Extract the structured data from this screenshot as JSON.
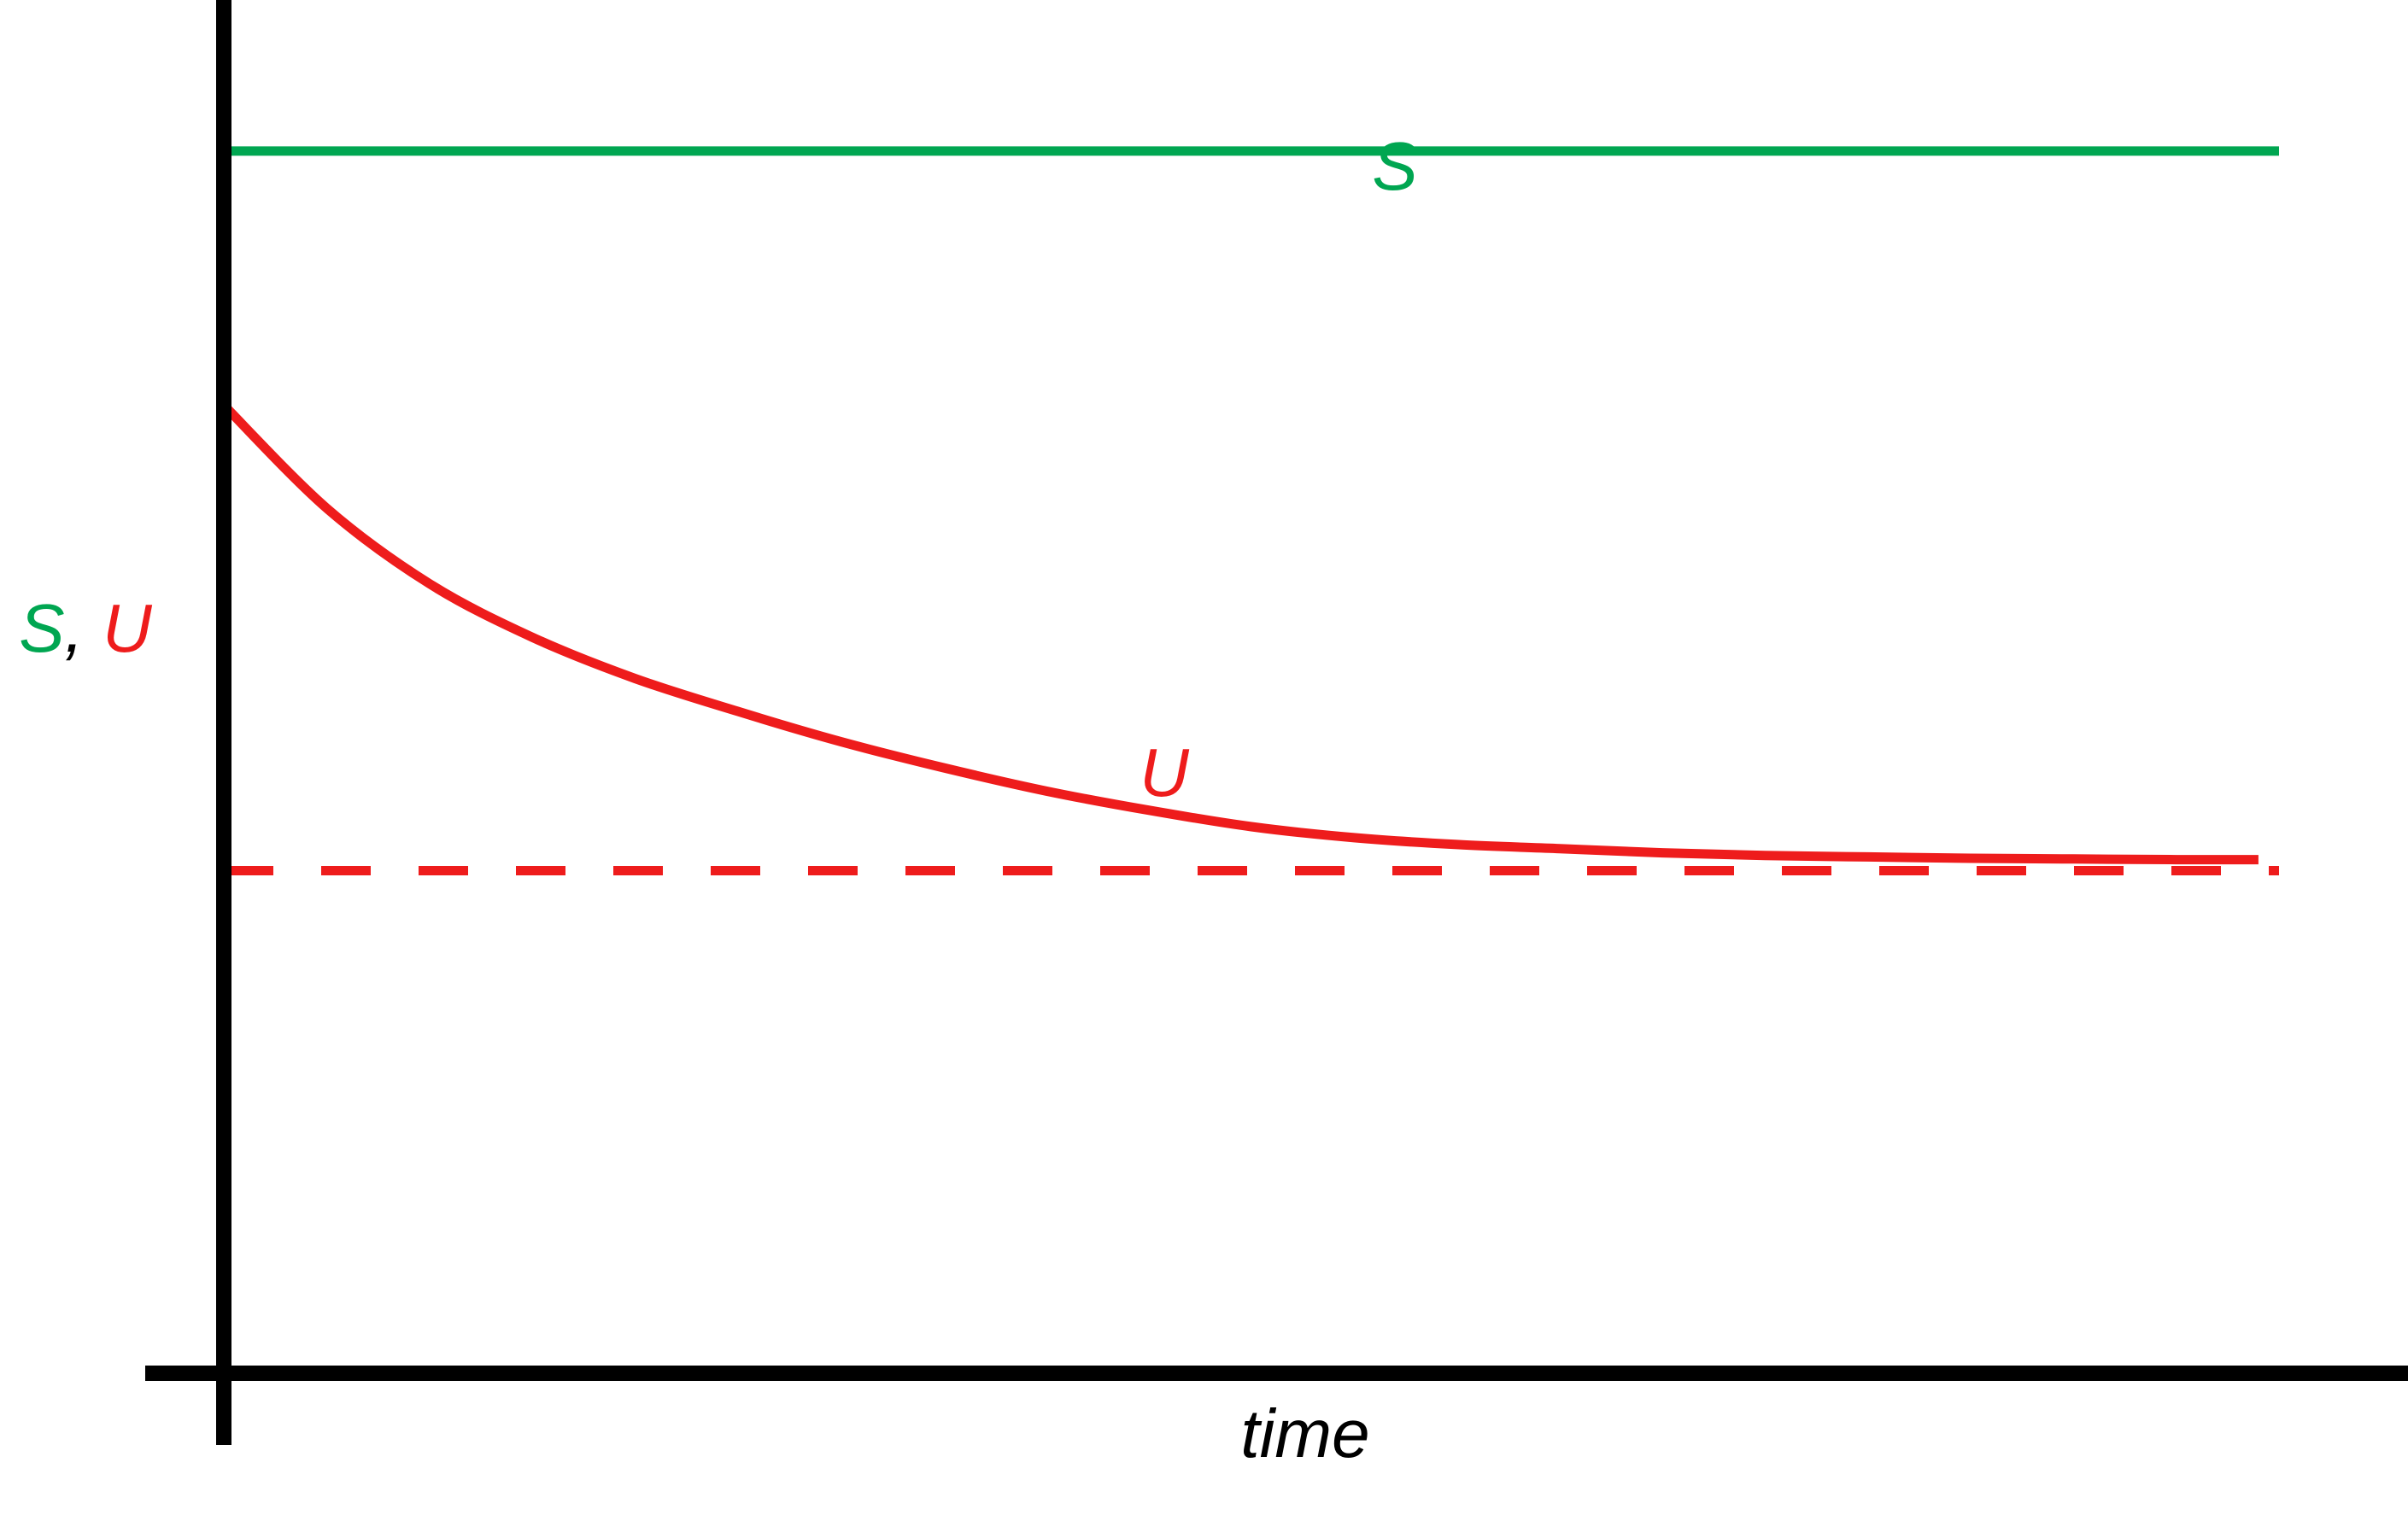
{
  "chart_data": {
    "type": "line",
    "title": "",
    "xlabel": "time",
    "ylabel": {
      "parts": [
        {
          "text": "S",
          "color": "#00a651"
        },
        {
          "text": ", ",
          "color": "#000000"
        },
        {
          "text": "U",
          "color": "#ee1c1c"
        }
      ]
    },
    "x_ticks": [],
    "y_ticks": [],
    "xlim": [
      0,
      10
    ],
    "ylim": [
      0,
      10
    ],
    "grid": false,
    "legend": "none",
    "series": [
      {
        "name": "S",
        "style": "solid",
        "color": "#00a651",
        "x": [
          0,
          10
        ],
        "y": [
          8.9,
          8.9
        ]
      },
      {
        "name": "U",
        "style": "solid",
        "color": "#ee1c1c",
        "x": [
          0,
          0.5,
          1,
          1.5,
          2,
          2.5,
          3,
          3.5,
          4,
          4.5,
          5,
          5.5,
          6,
          6.5,
          7,
          7.5,
          8,
          8.5,
          9,
          9.5,
          9.9
        ],
        "y": [
          7.05,
          6.3,
          5.75,
          5.36,
          5.06,
          4.82,
          4.6,
          4.41,
          4.24,
          4.1,
          3.98,
          3.9,
          3.85,
          3.82,
          3.79,
          3.77,
          3.76,
          3.75,
          3.745,
          3.74,
          3.74
        ]
      },
      {
        "name": "",
        "style": "dashed",
        "color": "#ee1c1c",
        "x": [
          0,
          10
        ],
        "y": [
          3.66,
          3.66
        ]
      }
    ]
  }
}
